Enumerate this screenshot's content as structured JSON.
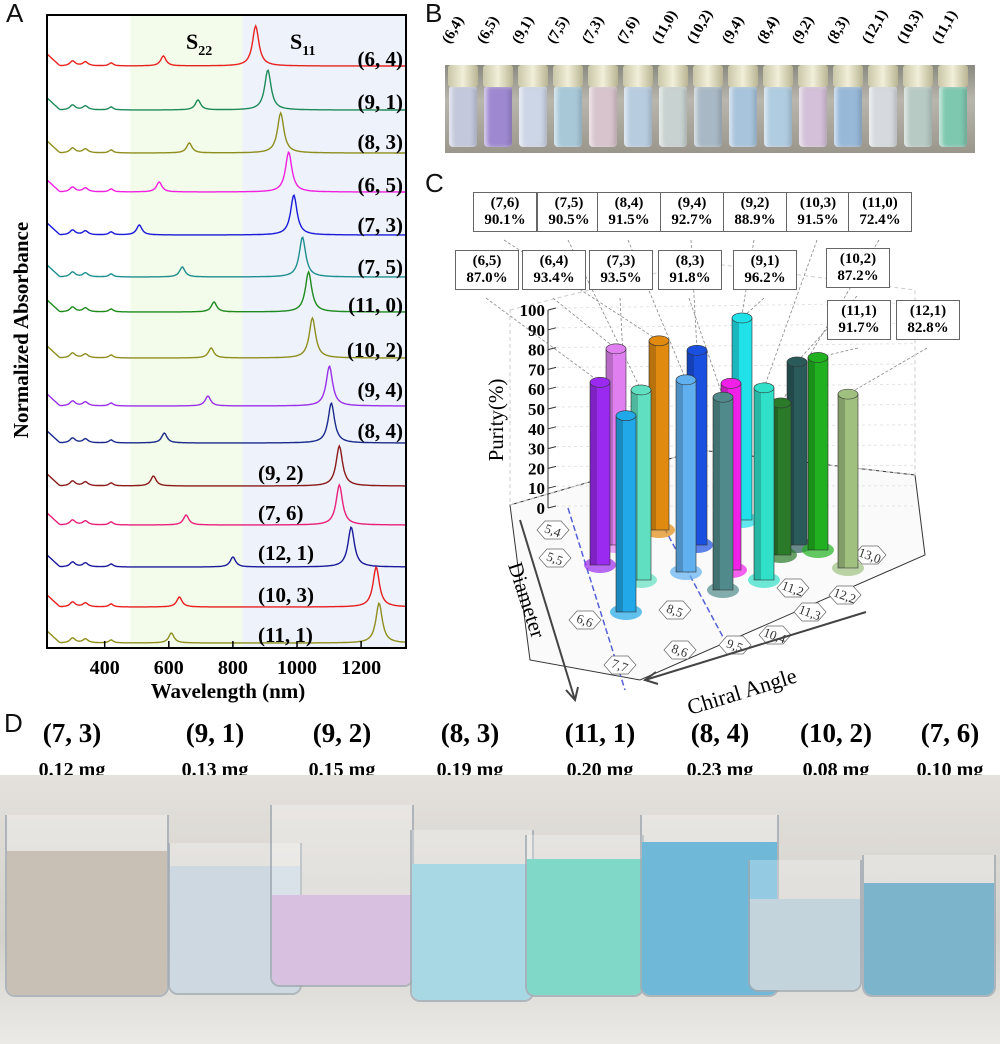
{
  "panels": {
    "a": "A",
    "b": "B",
    "c": "C",
    "d": "D"
  },
  "chart_data": [
    {
      "type": "line",
      "panel": "A",
      "xlabel": "Wavelength (nm)",
      "ylabel": "Normalized Absorbance",
      "xlim": [
        220,
        1340
      ],
      "xticks": [
        400,
        600,
        800,
        1000,
        1200
      ],
      "region_labels": {
        "s22": "S",
        "s22_sub": "22",
        "s11": "S",
        "s11_sub": "11"
      },
      "regions": [
        {
          "name": "S22",
          "from": 480,
          "to": 830,
          "color": "#f3fbea"
        },
        {
          "name": "S11",
          "from": 830,
          "to": 1340,
          "color": "#edf2fb"
        }
      ],
      "series": [
        {
          "name": "(6, 4)",
          "color": "#e8231f",
          "s22_nm": 583,
          "s11_nm": 871
        },
        {
          "name": "(9, 1)",
          "color": "#1e8a5a",
          "s22_nm": 691,
          "s11_nm": 909
        },
        {
          "name": "(8, 3)",
          "color": "#8e8e1e",
          "s22_nm": 664,
          "s11_nm": 949
        },
        {
          "name": "(6, 5)",
          "color": "#f020e0",
          "s22_nm": 570,
          "s11_nm": 974
        },
        {
          "name": "(7, 3)",
          "color": "#1a1ad8",
          "s22_nm": 508,
          "s11_nm": 990
        },
        {
          "name": "(7, 5)",
          "color": "#1f8e8e",
          "s22_nm": 642,
          "s11_nm": 1017
        },
        {
          "name": "(11, 0)",
          "color": "#1e8a1e",
          "s22_nm": 741,
          "s11_nm": 1036
        },
        {
          "name": "(10, 2)",
          "color": "#8e8e1e",
          "s22_nm": 732,
          "s11_nm": 1048
        },
        {
          "name": "(9, 4)",
          "color": "#9a30e8",
          "s22_nm": 722,
          "s11_nm": 1101
        },
        {
          "name": "(8, 4)",
          "color": "#1a2a8a",
          "s22_nm": 586,
          "s11_nm": 1107
        },
        {
          "name": "(9, 2)",
          "color": "#8a1a1a",
          "s22_nm": 552,
          "s11_nm": 1132
        },
        {
          "name": "(7, 6)",
          "color": "#e8207a",
          "s22_nm": 654,
          "s11_nm": 1132
        },
        {
          "name": "(12, 1)",
          "color": "#1a1a9a",
          "s22_nm": 800,
          "s11_nm": 1169
        },
        {
          "name": "(10, 3)",
          "color": "#e81e1e",
          "s22_nm": 633,
          "s11_nm": 1247
        },
        {
          "name": "(11, 1)",
          "color": "#8e8e1e",
          "s22_nm": 608,
          "s11_nm": 1256
        }
      ]
    },
    {
      "type": "bar",
      "panel": "C",
      "ylabel": "Purity(%)",
      "xlabel": "Chiral Angle",
      "zlabel": "Diameter",
      "ylim": [
        0,
        100
      ],
      "yticks": [
        0,
        10,
        20,
        30,
        40,
        50,
        60,
        70,
        80,
        90,
        100
      ],
      "floor_labels": [
        "5,4",
        "5,5",
        "6,6",
        "7,7",
        "8,5",
        "8,6",
        "9,5",
        "10,4",
        "11,2",
        "11,3",
        "12,2",
        "13,0"
      ],
      "bars": [
        {
          "label": "(6,5)",
          "value": "87.0%",
          "purity": 87.0,
          "color": "#9a2af0"
        },
        {
          "label": "(6,4)",
          "value": "93.4%",
          "purity": 93.4,
          "color": "#e080f0"
        },
        {
          "label": "(7,5)",
          "value": "90.5%",
          "purity": 90.5,
          "color": "#60e0c0"
        },
        {
          "label": "(7,3)",
          "value": "93.5%",
          "purity": 93.5,
          "color": "#20a8e8"
        },
        {
          "label": "(7,6)",
          "value": "90.1%",
          "purity": 90.1,
          "color": "#e08a10"
        },
        {
          "label": "(8,4)",
          "value": "91.5%",
          "purity": 91.5,
          "color": "#60b0f0"
        },
        {
          "label": "(9,4)",
          "value": "92.7%",
          "purity": 92.7,
          "color": "#1a50e0"
        },
        {
          "label": "(8,3)",
          "value": "91.8%",
          "purity": 91.8,
          "color": "#508a8a"
        },
        {
          "label": "(9,2)",
          "value": "88.9%",
          "purity": 88.9,
          "color": "#f020e8"
        },
        {
          "label": "(9,1)",
          "value": "96.2%",
          "purity": 96.2,
          "color": "#20e0e8"
        },
        {
          "label": "(10,3)",
          "value": "91.5%",
          "purity": 91.5,
          "color": "#30e0c8"
        },
        {
          "label": "(11,0)",
          "value": "72.4%",
          "purity": 72.4,
          "color": "#2a7a2a"
        },
        {
          "label": "(10,2)",
          "value": "87.2%",
          "purity": 87.2,
          "color": "#2a5a5a"
        },
        {
          "label": "(11,1)",
          "value": "91.7%",
          "purity": 91.7,
          "color": "#20b020"
        },
        {
          "label": "(12,1)",
          "value": "82.8%",
          "purity": 82.8,
          "color": "#a0c080"
        }
      ]
    }
  ],
  "vials": [
    {
      "label": "(6,4)",
      "color": "#c4c8dc"
    },
    {
      "label": "(6,5)",
      "color": "#9e88d0"
    },
    {
      "label": "(9,1)",
      "color": "#cdd6e6"
    },
    {
      "label": "(7,5)",
      "color": "#a8c8d8"
    },
    {
      "label": "(7,3)",
      "color": "#d8c4cc"
    },
    {
      "label": "(7,6)",
      "color": "#b8cce0"
    },
    {
      "label": "(11,0)",
      "color": "#c8d2d0"
    },
    {
      "label": "(10,2)",
      "color": "#a8b8c4"
    },
    {
      "label": "(9,4)",
      "color": "#a8c4dc"
    },
    {
      "label": "(8,4)",
      "color": "#b0cce0"
    },
    {
      "label": "(9,2)",
      "color": "#d4c0d8"
    },
    {
      "label": "(8,3)",
      "color": "#98b8d8"
    },
    {
      "label": "(12,1)",
      "color": "#d6dade"
    },
    {
      "label": "(10,3)",
      "color": "#b8cac4"
    },
    {
      "label": "(11,1)",
      "color": "#7ec8b0"
    }
  ],
  "beakers": [
    {
      "label": "(7, 3)",
      "mass": "0.12 mg",
      "color": "#c8c0b4"
    },
    {
      "label": "(9, 1)",
      "mass": "0.13 mg",
      "color": "#cdd8e0"
    },
    {
      "label": "(9, 2)",
      "mass": "0.15 mg",
      "color": "#d8c0e0"
    },
    {
      "label": "(8, 3)",
      "mass": "0.19 mg",
      "color": "#a8d8e4"
    },
    {
      "label": "(11, 1)",
      "mass": "0.20 mg",
      "color": "#80d8c8"
    },
    {
      "label": "(8, 4)",
      "mass": "0.23 mg",
      "color": "#70b8d8"
    },
    {
      "label": "(10, 2)",
      "mass": "0.08 mg",
      "color": "#c4d4dc"
    },
    {
      "label": "(7, 6)",
      "mass": "0.10 mg",
      "color": "#7cb4cc"
    }
  ]
}
